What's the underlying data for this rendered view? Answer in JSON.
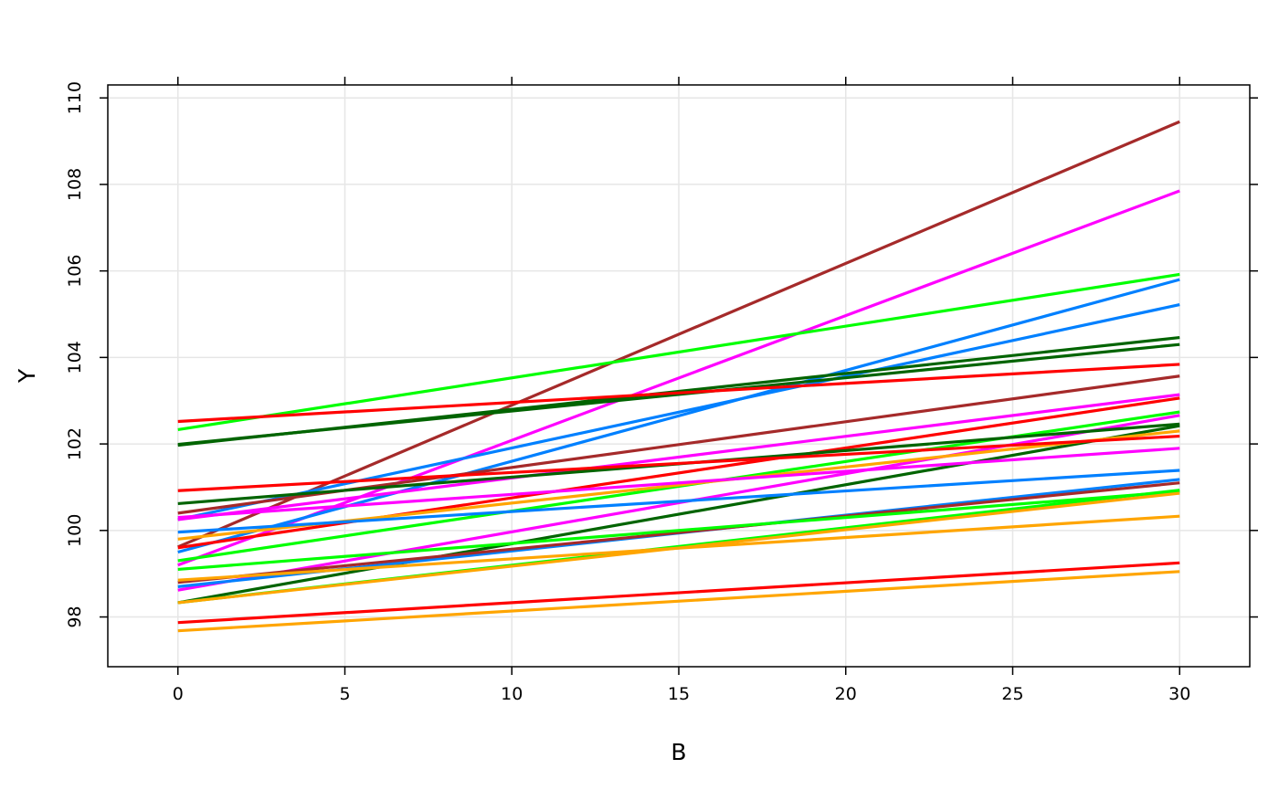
{
  "chart_data": {
    "type": "line",
    "xlabel": "B",
    "ylabel": "Y",
    "xlim": [
      -2.1,
      32.1
    ],
    "ylim": [
      96.85,
      110.3
    ],
    "xticks": [
      0,
      5,
      10,
      15,
      20,
      25,
      30
    ],
    "yticks": [
      98,
      100,
      102,
      104,
      106,
      108,
      110
    ],
    "grid": true,
    "legend": "none",
    "x": [
      0,
      30
    ],
    "series": [
      {
        "color": "#a52a2a",
        "values": [
          99.62,
          109.45
        ]
      },
      {
        "color": "#ff00ff",
        "values": [
          99.2,
          107.85
        ]
      },
      {
        "color": "#00ff00",
        "values": [
          102.33,
          105.92
        ]
      },
      {
        "color": "#0080ff",
        "values": [
          99.5,
          105.8
        ]
      },
      {
        "color": "#0080ff",
        "values": [
          100.25,
          105.22
        ]
      },
      {
        "color": "#006400",
        "values": [
          101.97,
          104.46
        ]
      },
      {
        "color": "#006400",
        "values": [
          101.99,
          104.3
        ]
      },
      {
        "color": "#ff0000",
        "values": [
          102.52,
          103.84
        ]
      },
      {
        "color": "#a52a2a",
        "values": [
          100.4,
          103.57
        ]
      },
      {
        "color": "#ff00ff",
        "values": [
          100.25,
          103.14
        ]
      },
      {
        "color": "#ff0000",
        "values": [
          99.6,
          103.06
        ]
      },
      {
        "color": "#00ff00",
        "values": [
          99.3,
          102.74
        ]
      },
      {
        "color": "#ff00ff",
        "values": [
          98.62,
          102.66
        ]
      },
      {
        "color": "#006400",
        "values": [
          100.62,
          102.46
        ]
      },
      {
        "color": "#006400",
        "values": [
          98.33,
          102.42
        ]
      },
      {
        "color": "#ffa500",
        "values": [
          99.8,
          102.3
        ]
      },
      {
        "color": "#ff0000",
        "values": [
          100.92,
          102.18
        ]
      },
      {
        "color": "#ff00ff",
        "values": [
          100.3,
          101.9
        ]
      },
      {
        "color": "#0080ff",
        "values": [
          99.96,
          101.39
        ]
      },
      {
        "color": "#0080ff",
        "values": [
          98.7,
          101.18
        ]
      },
      {
        "color": "#a52a2a",
        "values": [
          98.8,
          101.1
        ]
      },
      {
        "color": "#00ff00",
        "values": [
          98.33,
          100.93
        ]
      },
      {
        "color": "#00ff00",
        "values": [
          99.1,
          100.9
        ]
      },
      {
        "color": "#ffa500",
        "values": [
          98.33,
          100.86
        ]
      },
      {
        "color": "#ffa500",
        "values": [
          98.85,
          100.33
        ]
      },
      {
        "color": "#ff0000",
        "values": [
          97.87,
          99.25
        ]
      },
      {
        "color": "#ffa500",
        "values": [
          97.68,
          99.05
        ]
      }
    ]
  }
}
